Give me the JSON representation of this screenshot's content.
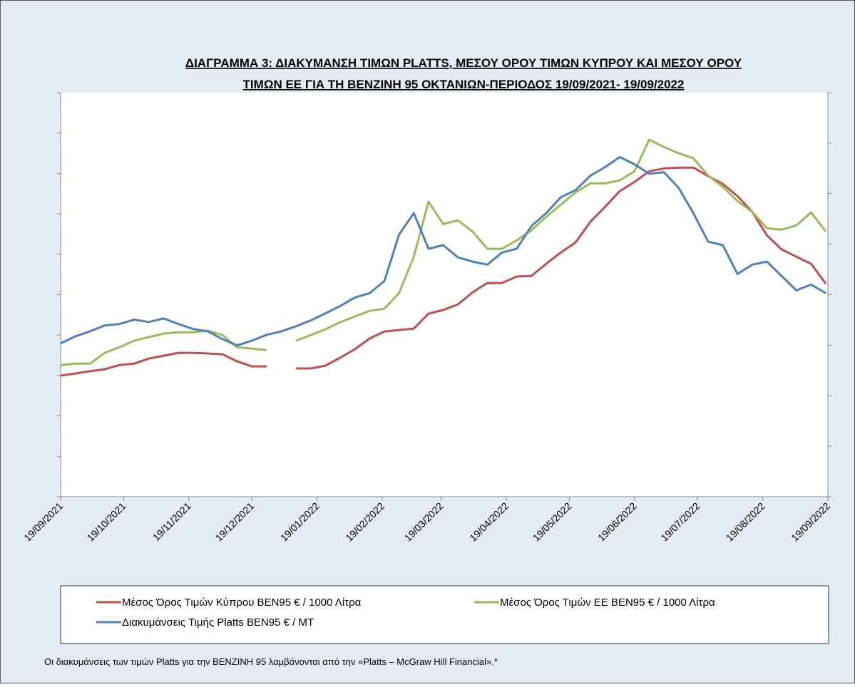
{
  "chart_data": {
    "type": "line",
    "title": [
      "ΔΙΑΓΡΑΜΜΑ 3: ΔΙΑΚΥΜΑΝΣΗ ΤΙΜΩΝ PLATTS, ΜΕΣΟΥ ΟΡΟΥ ΤΙΜΩΝ ΚΥΠΡΟΥ ΚΑΙ ΜΕΣΟΥ ΟΡΟΥ",
      "ΤΙΜΩΝ ΕΕ ΓΙΑ ΤΗ ΒΕΝΖΙΝΗ 95 ΟΚΤΑΝΙΩΝ-ΠΕΡΙΟΔΟΣ  19/09/2021- 19/09/2022"
    ],
    "note": "Οι διακυμάνσεις των τιμών Platts για την ΒΕΝΖΙΝΗ 95 λαμβάνονται από την «Platts – McGraw Hill Financial».*",
    "x": [
      "19/09/2021",
      "26/09/2021",
      "03/10/2021",
      "10/10/2021",
      "17/10/2021",
      "24/10/2021",
      "31/10/2021",
      "07/11/2021",
      "14/11/2021",
      "21/11/2021",
      "28/11/2021",
      "05/12/2021",
      "12/12/2021",
      "19/12/2021",
      "26/12/2021",
      "02/01/2022",
      "09/01/2022",
      "16/01/2022",
      "23/01/2022",
      "30/01/2022",
      "06/02/2022",
      "13/02/2022",
      "20/02/2022",
      "27/02/2022",
      "06/03/2022",
      "13/03/2022",
      "20/03/2022",
      "27/03/2022",
      "03/04/2022",
      "10/04/2022",
      "17/04/2022",
      "24/04/2022",
      "01/05/2022",
      "08/05/2022",
      "15/05/2022",
      "22/05/2022",
      "29/05/2022",
      "05/06/2022",
      "12/06/2022",
      "19/06/2022",
      "26/06/2022",
      "03/07/2022",
      "10/07/2022",
      "17/07/2022",
      "24/07/2022",
      "31/07/2022",
      "07/08/2022",
      "14/08/2022",
      "21/08/2022",
      "28/08/2022",
      "04/09/2022",
      "11/09/2022",
      "18/09/2022"
    ],
    "xlim": [
      "19/09/2021",
      "19/09/2022"
    ],
    "xticks": [
      "19/09/2021",
      "19/10/2021",
      "19/11/2021",
      "19/12/2021",
      "19/01/2022",
      "19/02/2022",
      "19/03/2022",
      "19/04/2022",
      "19/05/2022",
      "19/06/2022",
      "19/07/2022",
      "19/08/2022",
      "19/09/2022"
    ],
    "ylim": [
      400,
      2400
    ],
    "yticks": [
      400,
      600,
      800,
      1000,
      1200,
      1400,
      1600,
      1800,
      2000,
      2200,
      2400
    ],
    "y2lim": [
      0,
      1600
    ],
    "y2ticks": [
      0,
      200,
      400,
      600,
      800,
      1000,
      1200,
      1400,
      1600
    ],
    "series": [
      {
        "name": "Μέσος Όρος Τιμών Κύπρου ΒΕΝ95 € / 1000 Λίτρα",
        "color": "#c0504d",
        "values": [
          999,
          1010,
          1021,
          1031,
          1052,
          1059,
          1084,
          1098,
          1112,
          1112,
          1109,
          1105,
          1070,
          1045,
          1045,
          null,
          1035,
          1035,
          1049,
          1088,
          1130,
          1183,
          1218,
          1225,
          1232,
          1306,
          1324,
          1352,
          1412,
          1458,
          1458,
          1490,
          1493,
          1553,
          1609,
          1659,
          1761,
          1835,
          1913,
          1958,
          2011,
          2025,
          2029,
          2029,
          1987,
          1948,
          1888,
          1810,
          1694,
          1624,
          1588,
          1553,
          1454
        ]
      },
      {
        "name": "Μέσος Όρος Τιμών ΕΕ ΒΕΝ95 € / 1000 Λίτρα",
        "color": "#9bbb59",
        "values": [
          1052,
          1059,
          1059,
          1112,
          1140,
          1172,
          1190,
          1207,
          1214,
          1214,
          1222,
          1200,
          1140,
          1133,
          1126,
          null,
          1172,
          1200,
          1229,
          1264,
          1292,
          1320,
          1331,
          1408,
          1588,
          1860,
          1750,
          1768,
          1712,
          1627,
          1627,
          1669,
          1719,
          1786,
          1846,
          1906,
          1951,
          1951,
          1966,
          2011,
          2167,
          2131,
          2100,
          2075,
          1990,
          1934,
          1863,
          1810,
          1729,
          1722,
          1743,
          1807,
          1712
        ]
      },
      {
        "name": "Διακυμάνσεις Τιμής Platts ΒΕΝ95 € / ΜΤ",
        "color": "#4f81bd",
        "axis": "y2",
        "values": [
          607,
          635,
          655,
          678,
          684,
          701,
          692,
          706,
          684,
          664,
          655,
          624,
          599,
          618,
          641,
          655,
          675,
          698,
          726,
          755,
          789,
          806,
          854,
          1038,
          1123,
          982,
          996,
          948,
          931,
          919,
          967,
          982,
          1072,
          1123,
          1186,
          1214,
          1271,
          1305,
          1345,
          1316,
          1279,
          1285,
          1223,
          1123,
          1010,
          996,
          882,
          919,
          931,
          874,
          817,
          840,
          806
        ]
      }
    ]
  }
}
